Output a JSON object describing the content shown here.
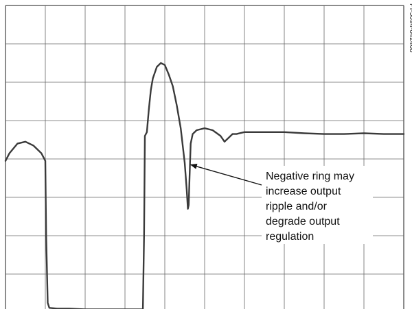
{
  "chart_data": {
    "type": "line",
    "title": "",
    "xlabel": "",
    "ylabel": "",
    "grid": true,
    "grid_divisions": {
      "x": 10,
      "y": 8
    },
    "xlim": [
      0,
      10
    ],
    "ylim": [
      0,
      8
    ],
    "series": [
      {
        "x": [
          0,
          0.1,
          0.3,
          0.5,
          0.7,
          0.9,
          1.0,
          1.02,
          1.06,
          1.1,
          1.3,
          1.6,
          2.0,
          2.4,
          2.8,
          3.1,
          3.45,
          3.48,
          3.5,
          3.55,
          3.6,
          3.65,
          3.7,
          3.8,
          3.9,
          4.0,
          4.1,
          4.2,
          4.3,
          4.4,
          4.5,
          4.55,
          4.58,
          4.6,
          4.62,
          4.65,
          4.7,
          4.8,
          5.0,
          5.2,
          5.4,
          5.5,
          5.6,
          5.7,
          5.8,
          6.0,
          6.5,
          7.0,
          7.5,
          8.0,
          8.5,
          9.0,
          9.5,
          10.0
        ],
        "y": [
          3.95,
          4.15,
          4.4,
          4.45,
          4.35,
          4.15,
          3.95,
          2.0,
          0.25,
          0.12,
          0.1,
          0.1,
          0.08,
          0.08,
          0.08,
          0.08,
          0.08,
          2.0,
          4.6,
          4.7,
          5.3,
          5.8,
          6.1,
          6.4,
          6.5,
          6.45,
          6.2,
          5.9,
          5.4,
          4.8,
          3.9,
          3.2,
          2.7,
          2.8,
          3.5,
          4.4,
          4.65,
          4.75,
          4.8,
          4.75,
          4.6,
          4.45,
          4.55,
          4.65,
          4.65,
          4.7,
          4.7,
          4.7,
          4.67,
          4.65,
          4.65,
          4.67,
          4.65,
          4.65
        ]
      }
    ],
    "annotations": [
      {
        "lines": [
          "Negative ring may",
          "increase output",
          "ripple and/or",
          "degrade output",
          "regulation"
        ],
        "points_to": {
          "x": 4.6,
          "y": 3.85
        }
      }
    ]
  },
  "figure_id": "PI-5094-042408",
  "colors": {
    "grid": "#666666",
    "trace": "#3a3a3a",
    "text": "#111111"
  }
}
